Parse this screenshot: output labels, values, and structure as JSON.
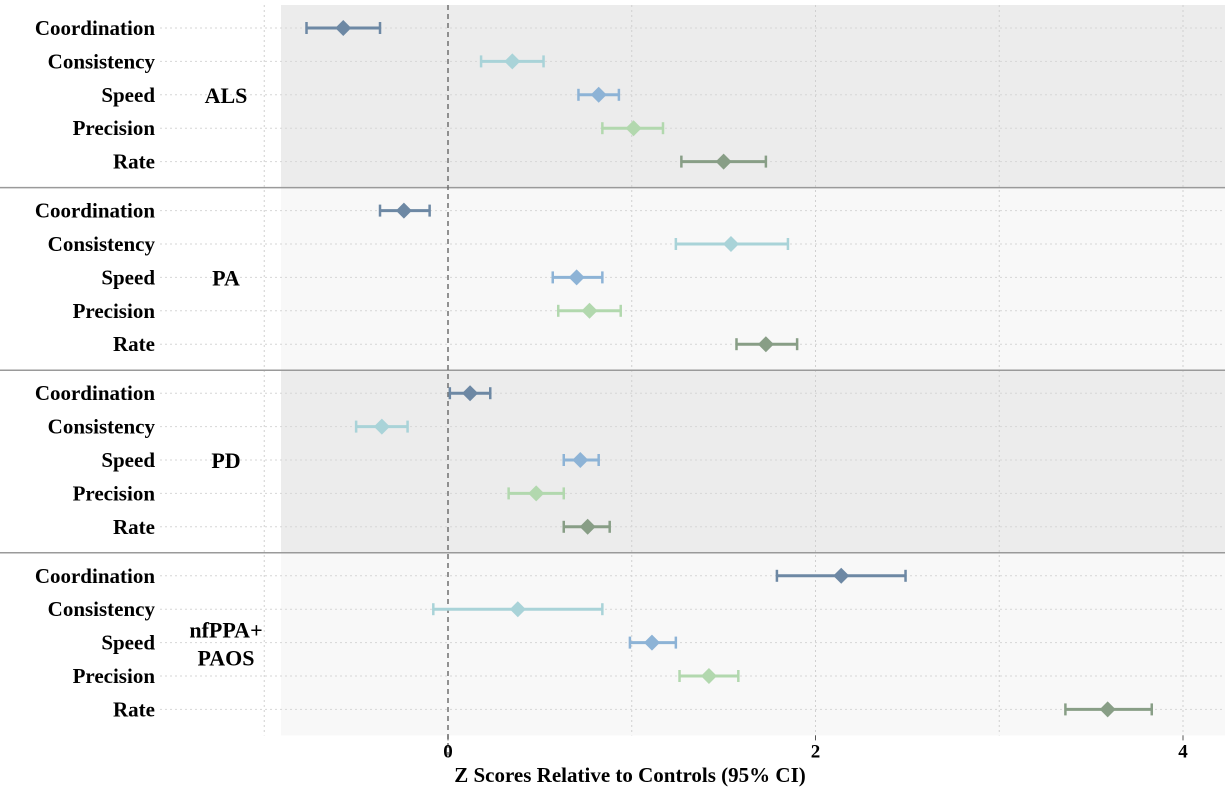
{
  "chart_data": {
    "type": "forest",
    "xlabel": "Z Scores Relative to Controls (95% CI)",
    "xlim": [
      -1.5,
      4.2
    ],
    "xticks": [
      0,
      2,
      4
    ],
    "xtick_labels": [
      "0",
      "2",
      "4"
    ],
    "reference_line": 0,
    "grid": true,
    "metrics": [
      "Coordination",
      "Consistency",
      "Speed",
      "Precision",
      "Rate"
    ],
    "metric_colors": {
      "Coordination": "#6d88a4",
      "Consistency": "#a9d3d8",
      "Speed": "#8db3d6",
      "Precision": "#b2d8ae",
      "Rate": "#889e86"
    },
    "groups": [
      {
        "name": "ALS",
        "label_lines": [
          "ALS"
        ],
        "shaded": true,
        "points": [
          {
            "metric": "Coordination",
            "value": -0.57,
            "low": -0.77,
            "high": -0.37
          },
          {
            "metric": "Consistency",
            "value": 0.35,
            "low": 0.18,
            "high": 0.52
          },
          {
            "metric": "Speed",
            "value": 0.82,
            "low": 0.71,
            "high": 0.93
          },
          {
            "metric": "Precision",
            "value": 1.01,
            "low": 0.84,
            "high": 1.17
          },
          {
            "metric": "Rate",
            "value": 1.5,
            "low": 1.27,
            "high": 1.73
          }
        ]
      },
      {
        "name": "PA",
        "label_lines": [
          "PA"
        ],
        "shaded": false,
        "points": [
          {
            "metric": "Coordination",
            "value": -0.24,
            "low": -0.37,
            "high": -0.1
          },
          {
            "metric": "Consistency",
            "value": 1.54,
            "low": 1.24,
            "high": 1.85
          },
          {
            "metric": "Speed",
            "value": 0.7,
            "low": 0.57,
            "high": 0.84
          },
          {
            "metric": "Precision",
            "value": 0.77,
            "low": 0.6,
            "high": 0.94
          },
          {
            "metric": "Rate",
            "value": 1.73,
            "low": 1.57,
            "high": 1.9
          }
        ]
      },
      {
        "name": "PD",
        "label_lines": [
          "PD"
        ],
        "shaded": true,
        "points": [
          {
            "metric": "Coordination",
            "value": 0.12,
            "low": 0.01,
            "high": 0.23
          },
          {
            "metric": "Consistency",
            "value": -0.36,
            "low": -0.5,
            "high": -0.22
          },
          {
            "metric": "Speed",
            "value": 0.72,
            "low": 0.63,
            "high": 0.82
          },
          {
            "metric": "Precision",
            "value": 0.48,
            "low": 0.33,
            "high": 0.63
          },
          {
            "metric": "Rate",
            "value": 0.76,
            "low": 0.63,
            "high": 0.88
          }
        ]
      },
      {
        "name": "nfPPA+ PAOS",
        "label_lines": [
          "nfPPA+",
          "PAOS"
        ],
        "shaded": false,
        "points": [
          {
            "metric": "Coordination",
            "value": 2.14,
            "low": 1.79,
            "high": 2.49
          },
          {
            "metric": "Consistency",
            "value": 0.38,
            "low": -0.08,
            "high": 0.84
          },
          {
            "metric": "Speed",
            "value": 1.11,
            "low": 0.99,
            "high": 1.24
          },
          {
            "metric": "Precision",
            "value": 1.42,
            "low": 1.26,
            "high": 1.58
          },
          {
            "metric": "Rate",
            "value": 3.59,
            "low": 3.36,
            "high": 3.83
          }
        ]
      }
    ]
  }
}
